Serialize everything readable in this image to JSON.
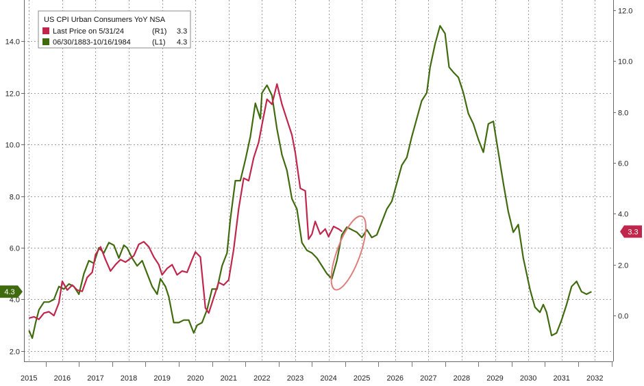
{
  "chart_data": {
    "type": "line",
    "legend": {
      "title": "US CPI Urban Consumers YoY NSA",
      "position": "top-left",
      "entries": [
        {
          "label": "Last Price on 5/31/24",
          "axis": "(R1)",
          "value": "3.3",
          "color": "#c0264b"
        },
        {
          "label": "06/30/1883-10/16/1984",
          "axis": "(L1)",
          "value": "4.3",
          "color": "#3f6b0e"
        }
      ]
    },
    "x_ticks": [
      "2015",
      "2016",
      "2017",
      "2018",
      "2019",
      "2020",
      "2021",
      "2022",
      "2023",
      "2024",
      "2025",
      "2026",
      "2027",
      "2028",
      "2029",
      "2030",
      "2031",
      "2032"
    ],
    "left_axis": {
      "ylim": [
        1.6,
        15.6
      ],
      "ticks": [
        "2.0",
        "4.0",
        "6.0",
        "8.0",
        "10.0",
        "12.0",
        "14.0"
      ],
      "tick_values": [
        2,
        4,
        6,
        8,
        10,
        12,
        14
      ]
    },
    "right_axis": {
      "ylim": [
        -1.8,
        12.4
      ],
      "ticks": [
        "0.0",
        "2.0",
        "4.0",
        "6.0",
        "8.0",
        "10.0",
        "12.0"
      ],
      "tick_values": [
        0,
        2,
        4,
        6,
        8,
        10,
        12
      ]
    },
    "grid": true,
    "series": [
      {
        "name": "Last Price on 5/31/24",
        "axis": "right",
        "color": "#c0264b",
        "points": [
          [
            2015.0,
            -0.1
          ],
          [
            2015.15,
            -0.05
          ],
          [
            2015.3,
            -0.15
          ],
          [
            2015.45,
            0.1
          ],
          [
            2015.6,
            0.15
          ],
          [
            2015.75,
            0.0
          ],
          [
            2015.9,
            0.5
          ],
          [
            2016.0,
            1.35
          ],
          [
            2016.15,
            1.0
          ],
          [
            2016.3,
            1.2
          ],
          [
            2016.45,
            1.0
          ],
          [
            2016.6,
            0.95
          ],
          [
            2016.75,
            1.5
          ],
          [
            2016.9,
            1.7
          ],
          [
            2017.0,
            2.4
          ],
          [
            2017.15,
            2.7
          ],
          [
            2017.3,
            2.2
          ],
          [
            2017.45,
            1.75
          ],
          [
            2017.6,
            2.0
          ],
          [
            2017.75,
            2.2
          ],
          [
            2017.9,
            2.1
          ],
          [
            2018.0,
            2.2
          ],
          [
            2018.15,
            2.35
          ],
          [
            2018.3,
            2.8
          ],
          [
            2018.45,
            2.9
          ],
          [
            2018.6,
            2.7
          ],
          [
            2018.75,
            2.3
          ],
          [
            2018.9,
            2.0
          ],
          [
            2019.0,
            1.6
          ],
          [
            2019.15,
            1.85
          ],
          [
            2019.3,
            2.0
          ],
          [
            2019.45,
            1.6
          ],
          [
            2019.6,
            1.75
          ],
          [
            2019.75,
            1.7
          ],
          [
            2019.9,
            2.2
          ],
          [
            2020.0,
            2.5
          ],
          [
            2020.15,
            2.3
          ],
          [
            2020.3,
            0.3
          ],
          [
            2020.4,
            0.1
          ],
          [
            2020.55,
            0.7
          ],
          [
            2020.7,
            1.3
          ],
          [
            2020.85,
            1.2
          ],
          [
            2021.0,
            1.4
          ],
          [
            2021.15,
            2.6
          ],
          [
            2021.3,
            4.2
          ],
          [
            2021.45,
            5.4
          ],
          [
            2021.6,
            5.3
          ],
          [
            2021.75,
            6.2
          ],
          [
            2021.9,
            6.8
          ],
          [
            2022.0,
            7.5
          ],
          [
            2022.15,
            8.5
          ],
          [
            2022.3,
            8.3
          ],
          [
            2022.45,
            9.1
          ],
          [
            2022.6,
            8.3
          ],
          [
            2022.75,
            7.7
          ],
          [
            2022.9,
            7.1
          ],
          [
            2023.0,
            6.4
          ],
          [
            2023.15,
            5.0
          ],
          [
            2023.3,
            4.9
          ],
          [
            2023.4,
            3.0
          ],
          [
            2023.5,
            3.2
          ],
          [
            2023.6,
            3.7
          ],
          [
            2023.75,
            3.2
          ],
          [
            2023.9,
            3.4
          ],
          [
            2024.0,
            3.1
          ],
          [
            2024.15,
            3.5
          ],
          [
            2024.3,
            3.4
          ],
          [
            2024.41,
            3.3
          ]
        ]
      },
      {
        "name": "06/30/1883-10/16/1984",
        "axis": "left",
        "color": "#3f6b0e",
        "points": [
          [
            2015.0,
            2.8
          ],
          [
            2015.1,
            2.5
          ],
          [
            2015.2,
            3.1
          ],
          [
            2015.3,
            3.6
          ],
          [
            2015.45,
            3.9
          ],
          [
            2015.6,
            3.9
          ],
          [
            2015.75,
            4.0
          ],
          [
            2015.9,
            4.5
          ],
          [
            2016.05,
            4.4
          ],
          [
            2016.2,
            4.6
          ],
          [
            2016.35,
            4.5
          ],
          [
            2016.5,
            4.2
          ],
          [
            2016.65,
            5.0
          ],
          [
            2016.8,
            5.5
          ],
          [
            2016.95,
            5.4
          ],
          [
            2017.1,
            6.0
          ],
          [
            2017.25,
            5.8
          ],
          [
            2017.4,
            6.2
          ],
          [
            2017.55,
            6.1
          ],
          [
            2017.7,
            5.6
          ],
          [
            2017.85,
            6.1
          ],
          [
            2017.95,
            6.0
          ],
          [
            2018.1,
            5.6
          ],
          [
            2018.25,
            5.3
          ],
          [
            2018.4,
            5.5
          ],
          [
            2018.55,
            5.0
          ],
          [
            2018.7,
            4.5
          ],
          [
            2018.85,
            4.2
          ],
          [
            2018.95,
            4.8
          ],
          [
            2019.1,
            4.5
          ],
          [
            2019.2,
            4.1
          ],
          [
            2019.35,
            3.1
          ],
          [
            2019.5,
            3.1
          ],
          [
            2019.65,
            3.2
          ],
          [
            2019.8,
            3.2
          ],
          [
            2019.95,
            2.7
          ],
          [
            2020.05,
            3.0
          ],
          [
            2020.2,
            3.1
          ],
          [
            2020.35,
            3.6
          ],
          [
            2020.5,
            4.4
          ],
          [
            2020.65,
            4.4
          ],
          [
            2020.8,
            5.3
          ],
          [
            2020.95,
            5.8
          ],
          [
            2021.05,
            7.1
          ],
          [
            2021.2,
            8.6
          ],
          [
            2021.35,
            8.6
          ],
          [
            2021.5,
            9.4
          ],
          [
            2021.65,
            10.3
          ],
          [
            2021.8,
            11.6
          ],
          [
            2021.95,
            11.0
          ],
          [
            2022.0,
            12.0
          ],
          [
            2022.15,
            12.3
          ],
          [
            2022.3,
            11.9
          ],
          [
            2022.45,
            10.6
          ],
          [
            2022.6,
            9.6
          ],
          [
            2022.75,
            9.0
          ],
          [
            2022.9,
            7.9
          ],
          [
            2023.05,
            7.5
          ],
          [
            2023.2,
            6.2
          ],
          [
            2023.35,
            5.9
          ],
          [
            2023.5,
            5.8
          ],
          [
            2023.65,
            5.6
          ],
          [
            2023.8,
            5.3
          ],
          [
            2023.95,
            5.0
          ],
          [
            2024.1,
            4.8
          ],
          [
            2024.25,
            5.5
          ],
          [
            2024.4,
            6.5
          ],
          [
            2024.55,
            6.8
          ],
          [
            2024.7,
            6.7
          ],
          [
            2024.85,
            6.6
          ],
          [
            2025.0,
            6.4
          ],
          [
            2025.15,
            6.7
          ],
          [
            2025.3,
            6.4
          ],
          [
            2025.45,
            6.5
          ],
          [
            2025.6,
            7.0
          ],
          [
            2025.75,
            7.5
          ],
          [
            2025.9,
            7.8
          ],
          [
            2026.05,
            8.5
          ],
          [
            2026.2,
            9.2
          ],
          [
            2026.35,
            9.5
          ],
          [
            2026.5,
            10.3
          ],
          [
            2026.65,
            11.0
          ],
          [
            2026.8,
            11.7
          ],
          [
            2026.95,
            12.0
          ],
          [
            2027.05,
            13.0
          ],
          [
            2027.2,
            13.9
          ],
          [
            2027.35,
            14.6
          ],
          [
            2027.5,
            14.3
          ],
          [
            2027.62,
            13.0
          ],
          [
            2027.75,
            12.8
          ],
          [
            2027.9,
            12.6
          ],
          [
            2028.05,
            12.0
          ],
          [
            2028.2,
            11.2
          ],
          [
            2028.35,
            10.8
          ],
          [
            2028.5,
            10.2
          ],
          [
            2028.65,
            9.7
          ],
          [
            2028.8,
            10.8
          ],
          [
            2028.95,
            10.9
          ],
          [
            2029.1,
            9.7
          ],
          [
            2029.25,
            8.5
          ],
          [
            2029.4,
            7.4
          ],
          [
            2029.55,
            6.6
          ],
          [
            2029.7,
            6.9
          ],
          [
            2029.85,
            5.6
          ],
          [
            2029.95,
            5.0
          ],
          [
            2030.05,
            4.4
          ],
          [
            2030.2,
            3.7
          ],
          [
            2030.35,
            3.5
          ],
          [
            2030.45,
            3.8
          ],
          [
            2030.55,
            3.5
          ],
          [
            2030.7,
            2.6
          ],
          [
            2030.85,
            2.7
          ],
          [
            2031.0,
            3.2
          ],
          [
            2031.15,
            3.8
          ],
          [
            2031.3,
            4.5
          ],
          [
            2031.45,
            4.7
          ],
          [
            2031.6,
            4.3
          ],
          [
            2031.75,
            4.2
          ],
          [
            2031.9,
            4.3
          ]
        ]
      }
    ],
    "last_value_tags": [
      {
        "series": "Last Price on 5/31/24",
        "axis": "right",
        "value": 3.3,
        "label": "3.3"
      },
      {
        "series": "06/30/1883-10/16/1984",
        "axis": "left",
        "value": 4.3,
        "label": "4.3"
      }
    ],
    "annotation": {
      "type": "ellipse",
      "color": "#e07d7d",
      "x_center": 2024.6,
      "y_center": 5.8,
      "axis": "left"
    }
  }
}
